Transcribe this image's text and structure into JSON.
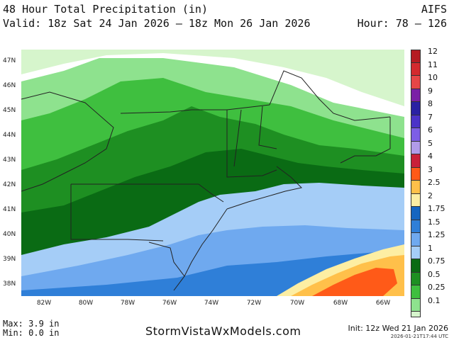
{
  "header": {
    "title": "48 Hour Total Precipitation (in)",
    "valid": "Valid: 18z Sat 24 Jan 2026 – 18z Mon 26 Jan 2026",
    "model": "AIFS",
    "hour": "Hour: 78 – 126"
  },
  "axes": {
    "lat_labels": [
      "47N",
      "46N",
      "45N",
      "44N",
      "43N",
      "42N",
      "41N",
      "40N",
      "39N",
      "38N"
    ],
    "lon_labels": [
      "82W",
      "80W",
      "78W",
      "76W",
      "74W",
      "72W",
      "70W",
      "68W",
      "66W"
    ]
  },
  "legend": {
    "labels": [
      "12",
      "11",
      "10",
      "9",
      "8",
      "7",
      "6",
      "5",
      "4",
      "3",
      "2.5",
      "2",
      "1.75",
      "1.5",
      "1.25",
      "1",
      "0.75",
      "0.5",
      "0.25",
      "0.1"
    ],
    "colors": [
      "#b51c22",
      "#d32a2e",
      "#e64647",
      "#7a1fa6",
      "#2a21a3",
      "#4b32c8",
      "#7d5ee6",
      "#b19be9",
      "#c8203a",
      "#ff5a18",
      "#ffc04a",
      "#fdeea3",
      "#1565c0",
      "#2f7fd8",
      "#6fa9ef",
      "#a5cdf7",
      "#0a6b14",
      "#1e8f22",
      "#3fbf3f",
      "#8ee28e"
    ],
    "low_color": "#d6f5cc"
  },
  "stats": {
    "max": "Max: 3.9 in",
    "min": "Min: 0.0 in"
  },
  "footer": {
    "site": "StormVistaWxModels.com",
    "init": "Init: 12z Wed 21 Jan 2026",
    "stamp": "2026-01-21T17:44 UTC"
  }
}
